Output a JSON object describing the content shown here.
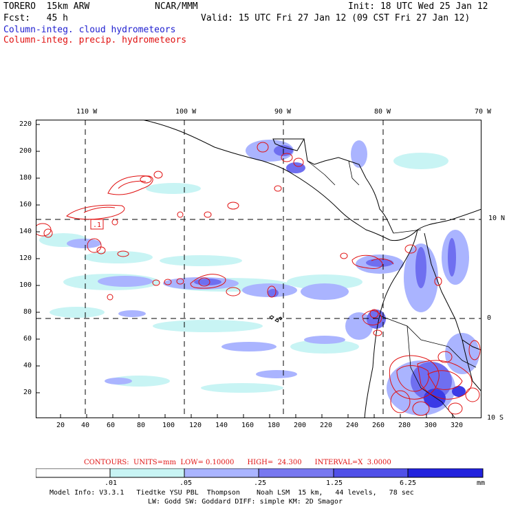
{
  "header": {
    "title": "TORERO  15km ARW",
    "center": "NCAR/MMM",
    "init": "Init: 18 UTC Wed 25 Jan 12",
    "fcst": "Fcst:   45 h",
    "valid": "Valid: 15 UTC Fri 27 Jan 12 (09 CST Fri 27 Jan 12)",
    "field1": "Column-integ. cloud hydrometeors",
    "field2": "Column-integ. precip. hydrometeors"
  },
  "map": {
    "lon_labels": [
      "110 W",
      "100 W",
      "90 W",
      "80 W",
      "70 W"
    ],
    "lat_labels": [
      "10 N",
      "0",
      "10 S"
    ],
    "y_ticks": [
      "220",
      "200",
      "180",
      "160",
      "140",
      "120",
      "100",
      "80",
      "60",
      "40",
      "20"
    ],
    "x_ticks": [
      "20",
      "40",
      "60",
      "80",
      "100",
      "120",
      "140",
      "160",
      "180",
      "200",
      "220",
      "240",
      "260",
      "280",
      "300",
      "320"
    ],
    "max_label": ".1"
  },
  "contours_info": {
    "text": "CONTOURS:  UNITS=mm  LOW= 0.10000      HIGH=  24.300      INTERVAL=X  3.0000"
  },
  "colorbar": {
    "labels": [
      ".01",
      ".05",
      ".25",
      "1.25",
      "6.25"
    ],
    "units": "mm",
    "colors": [
      "#ffffff",
      "#c8f4f4",
      "#aab4ff",
      "#7878f0",
      "#5050e8",
      "#2222dd"
    ]
  },
  "model_info": {
    "line1": "Model Info: V3.3.1   Tiedtke YSU PBL  Thompson    Noah LSM  15 km,   44 levels,   78 sec",
    "line2": "LW: Godd SW: Goddard DIFF: simple KM: 2D Smagor"
  }
}
